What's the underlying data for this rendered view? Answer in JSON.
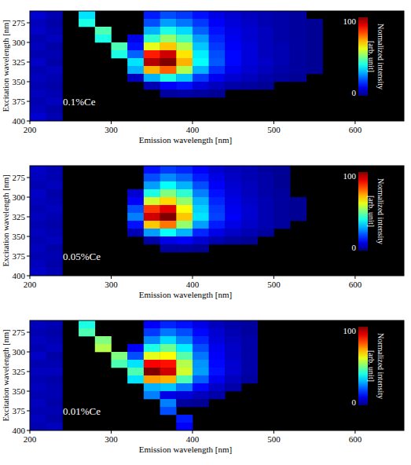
{
  "chart_data": [
    {
      "type": "heatmap",
      "annotation": "0.1%Ce",
      "x_label": "Emission wavelength [nm]",
      "y_label": "Excitation wavelength [nm]",
      "xlim": [
        200,
        660
      ],
      "xticks": [
        200,
        300,
        400,
        500,
        600
      ],
      "ylim": [
        260,
        400
      ],
      "yticks": [
        275,
        300,
        325,
        350,
        375,
        400
      ],
      "x": [
        210,
        230,
        250,
        270,
        290,
        310,
        330,
        350,
        370,
        390,
        410,
        430,
        450,
        470,
        490,
        510,
        530,
        550,
        570,
        590,
        610,
        630,
        650
      ],
      "y": [
        265,
        275,
        285,
        295,
        305,
        315,
        325,
        335,
        345,
        355,
        365,
        375,
        385,
        395
      ],
      "values": [
        [
          8,
          5,
          null,
          35,
          null,
          null,
          null,
          15,
          20,
          18,
          14,
          10,
          8,
          6,
          5,
          4,
          3,
          null,
          null,
          null,
          null,
          null,
          null
        ],
        [
          6,
          4,
          null,
          40,
          null,
          null,
          null,
          20,
          28,
          24,
          18,
          12,
          9,
          7,
          5,
          4,
          3,
          2,
          null,
          null,
          null,
          null,
          null
        ],
        [
          7,
          5,
          null,
          null,
          45,
          null,
          null,
          30,
          40,
          34,
          22,
          14,
          10,
          8,
          6,
          4,
          3,
          2,
          null,
          null,
          null,
          null,
          null
        ],
        [
          5,
          6,
          null,
          null,
          40,
          null,
          10,
          42,
          52,
          44,
          28,
          16,
          11,
          8,
          6,
          4,
          3,
          2,
          null,
          null,
          null,
          null,
          null
        ],
        [
          6,
          4,
          null,
          null,
          null,
          45,
          14,
          60,
          68,
          55,
          32,
          18,
          12,
          9,
          6,
          5,
          3,
          2,
          null,
          null,
          null,
          null,
          null
        ],
        [
          5,
          5,
          null,
          null,
          null,
          40,
          22,
          85,
          92,
          65,
          36,
          20,
          13,
          9,
          6,
          5,
          3,
          2,
          null,
          null,
          null,
          null,
          null
        ],
        [
          7,
          4,
          null,
          null,
          null,
          null,
          35,
          95,
          100,
          70,
          38,
          21,
          13,
          9,
          7,
          5,
          3,
          2,
          null,
          null,
          null,
          null,
          null
        ],
        [
          5,
          6,
          null,
          null,
          null,
          null,
          30,
          70,
          78,
          55,
          30,
          17,
          11,
          8,
          6,
          4,
          3,
          2,
          null,
          null,
          null,
          null,
          null
        ],
        [
          6,
          5,
          null,
          null,
          null,
          null,
          6,
          30,
          40,
          32,
          18,
          11,
          8,
          6,
          4,
          3,
          2,
          null,
          null,
          null,
          null,
          null,
          null
        ],
        [
          5,
          4,
          null,
          null,
          null,
          null,
          null,
          5,
          12,
          14,
          9,
          6,
          4,
          3,
          2,
          null,
          null,
          null,
          null,
          null,
          null,
          null,
          null
        ],
        [
          6,
          5,
          null,
          null,
          null,
          null,
          null,
          null,
          3,
          4,
          3,
          2,
          null,
          null,
          null,
          null,
          null,
          null,
          null,
          null,
          null,
          null,
          null
        ],
        [
          5,
          6,
          null,
          null,
          null,
          null,
          null,
          null,
          null,
          null,
          null,
          null,
          null,
          null,
          null,
          null,
          null,
          null,
          null,
          null,
          null,
          null,
          null
        ],
        [
          6,
          4,
          null,
          null,
          null,
          null,
          null,
          null,
          null,
          null,
          null,
          null,
          null,
          null,
          null,
          null,
          null,
          null,
          null,
          null,
          null,
          null,
          null
        ],
        [
          8,
          5,
          null,
          null,
          null,
          null,
          null,
          null,
          null,
          null,
          null,
          null,
          null,
          null,
          null,
          null,
          null,
          null,
          null,
          null,
          null,
          null,
          null
        ]
      ],
      "colorbar_label": "Normalized intensity [arb. unit]",
      "colorbar_range": [
        0,
        100
      ],
      "colorbar_ticks": [
        0,
        100
      ]
    },
    {
      "type": "heatmap",
      "annotation": "0.05%Ce",
      "x_label": "Emission wavelength [nm]",
      "y_label": "Excitation wavelength [nm]",
      "xlim": [
        200,
        660
      ],
      "xticks": [
        200,
        300,
        400,
        500,
        600
      ],
      "ylim": [
        260,
        400
      ],
      "yticks": [
        275,
        300,
        325,
        350,
        375,
        400
      ],
      "x": [
        210,
        230,
        250,
        270,
        290,
        310,
        330,
        350,
        370,
        390,
        410,
        430,
        450,
        470,
        490,
        510,
        530,
        550,
        570,
        590,
        610,
        630,
        650
      ],
      "y": [
        265,
        275,
        285,
        295,
        305,
        315,
        325,
        335,
        345,
        355,
        365,
        375,
        385,
        395
      ],
      "values": [
        [
          7,
          5,
          null,
          null,
          null,
          null,
          null,
          14,
          18,
          16,
          12,
          8,
          6,
          5,
          3,
          2,
          null,
          null,
          null,
          null,
          null,
          null,
          null
        ],
        [
          6,
          5,
          null,
          null,
          null,
          null,
          null,
          20,
          26,
          22,
          15,
          10,
          7,
          5,
          4,
          2,
          null,
          null,
          null,
          null,
          null,
          null,
          null
        ],
        [
          5,
          6,
          null,
          null,
          null,
          null,
          null,
          28,
          38,
          30,
          20,
          12,
          8,
          6,
          4,
          2,
          null,
          null,
          null,
          null,
          null,
          null,
          null
        ],
        [
          7,
          4,
          null,
          null,
          null,
          null,
          8,
          40,
          50,
          42,
          25,
          14,
          9,
          6,
          4,
          3,
          null,
          null,
          null,
          null,
          null,
          null,
          null
        ],
        [
          6,
          5,
          null,
          null,
          null,
          null,
          12,
          58,
          66,
          52,
          30,
          16,
          10,
          7,
          5,
          3,
          2,
          null,
          null,
          null,
          null,
          null,
          null
        ],
        [
          5,
          6,
          null,
          null,
          null,
          null,
          20,
          82,
          90,
          62,
          33,
          18,
          11,
          8,
          5,
          3,
          2,
          null,
          null,
          null,
          null,
          null,
          null
        ],
        [
          6,
          5,
          null,
          null,
          null,
          null,
          25,
          92,
          100,
          68,
          35,
          19,
          12,
          8,
          5,
          3,
          2,
          null,
          null,
          null,
          null,
          null,
          null
        ],
        [
          5,
          4,
          null,
          null,
          null,
          null,
          14,
          68,
          76,
          52,
          28,
          15,
          10,
          7,
          5,
          3,
          null,
          null,
          null,
          null,
          null,
          null,
          null
        ],
        [
          6,
          5,
          null,
          null,
          null,
          null,
          5,
          28,
          38,
          30,
          16,
          10,
          7,
          5,
          3,
          null,
          null,
          null,
          null,
          null,
          null,
          null,
          null
        ],
        [
          5,
          6,
          null,
          null,
          null,
          null,
          null,
          4,
          10,
          12,
          8,
          5,
          3,
          2,
          null,
          null,
          null,
          null,
          null,
          null,
          null,
          null,
          null
        ],
        [
          6,
          4,
          null,
          null,
          null,
          null,
          null,
          null,
          3,
          3,
          2,
          null,
          null,
          null,
          null,
          null,
          null,
          null,
          null,
          null,
          null,
          null,
          null
        ],
        [
          5,
          5,
          null,
          null,
          null,
          null,
          null,
          null,
          null,
          null,
          null,
          null,
          null,
          null,
          null,
          null,
          null,
          null,
          null,
          null,
          null,
          null,
          null
        ],
        [
          6,
          4,
          null,
          null,
          null,
          null,
          null,
          null,
          null,
          null,
          null,
          null,
          null,
          null,
          null,
          null,
          null,
          null,
          null,
          null,
          null,
          null,
          null
        ],
        [
          7,
          5,
          null,
          null,
          null,
          null,
          null,
          null,
          null,
          null,
          null,
          null,
          null,
          null,
          null,
          null,
          null,
          null,
          null,
          null,
          null,
          null,
          null
        ]
      ],
      "colorbar_label": "Normalized intensity [arb. unit]",
      "colorbar_range": [
        0,
        100
      ],
      "colorbar_ticks": [
        0,
        100
      ]
    },
    {
      "type": "heatmap",
      "annotation": "0.01%Ce",
      "x_label": "Emission wavelength [nm]",
      "y_label": "Excitation wavelength [nm]",
      "xlim": [
        200,
        660
      ],
      "xticks": [
        200,
        300,
        400,
        500,
        600
      ],
      "ylim": [
        260,
        400
      ],
      "yticks": [
        275,
        300,
        325,
        350,
        375,
        400
      ],
      "x": [
        210,
        230,
        250,
        270,
        290,
        310,
        330,
        350,
        370,
        390,
        410,
        430,
        450,
        470,
        490,
        510,
        530,
        550,
        570,
        590,
        610,
        630,
        650
      ],
      "y": [
        265,
        275,
        285,
        295,
        305,
        315,
        325,
        335,
        345,
        355,
        365,
        375,
        385,
        395
      ],
      "values": [
        [
          6,
          5,
          null,
          40,
          null,
          null,
          null,
          12,
          16,
          14,
          10,
          6,
          4,
          3,
          null,
          null,
          null,
          null,
          null,
          null,
          null,
          null,
          null
        ],
        [
          5,
          4,
          null,
          45,
          null,
          null,
          null,
          18,
          24,
          20,
          13,
          8,
          5,
          3,
          null,
          null,
          null,
          null,
          null,
          null,
          null,
          null,
          null
        ],
        [
          6,
          5,
          null,
          null,
          50,
          null,
          null,
          26,
          34,
          26,
          16,
          9,
          6,
          4,
          null,
          null,
          null,
          null,
          null,
          null,
          null,
          null,
          null
        ],
        [
          5,
          6,
          null,
          null,
          55,
          null,
          12,
          40,
          48,
          36,
          20,
          11,
          7,
          4,
          null,
          null,
          null,
          null,
          null,
          null,
          null,
          null,
          null
        ],
        [
          7,
          4,
          null,
          null,
          null,
          50,
          20,
          60,
          62,
          46,
          24,
          12,
          7,
          4,
          null,
          null,
          null,
          null,
          null,
          null,
          null,
          null,
          null
        ],
        [
          5,
          5,
          null,
          null,
          null,
          45,
          35,
          88,
          86,
          55,
          27,
          13,
          8,
          4,
          null,
          null,
          null,
          null,
          null,
          null,
          null,
          null,
          null
        ],
        [
          6,
          6,
          null,
          null,
          null,
          null,
          45,
          100,
          92,
          58,
          28,
          14,
          8,
          4,
          null,
          null,
          null,
          null,
          null,
          null,
          null,
          null,
          null
        ],
        [
          5,
          4,
          null,
          null,
          null,
          null,
          35,
          72,
          70,
          45,
          22,
          11,
          6,
          3,
          null,
          null,
          null,
          null,
          null,
          null,
          null,
          null,
          null
        ],
        [
          6,
          5,
          null,
          null,
          null,
          null,
          null,
          30,
          32,
          24,
          13,
          7,
          4,
          null,
          null,
          null,
          null,
          null,
          null,
          null,
          null,
          null,
          null
        ],
        [
          5,
          5,
          null,
          null,
          null,
          null,
          null,
          25,
          10,
          9,
          6,
          4,
          null,
          null,
          null,
          null,
          null,
          null,
          null,
          null,
          null,
          null,
          null
        ],
        [
          6,
          4,
          null,
          null,
          null,
          null,
          null,
          null,
          25,
          3,
          2,
          null,
          null,
          null,
          null,
          null,
          null,
          null,
          null,
          null,
          null,
          null,
          null
        ],
        [
          5,
          5,
          null,
          null,
          null,
          null,
          null,
          null,
          20,
          null,
          null,
          null,
          null,
          null,
          null,
          null,
          null,
          null,
          null,
          null,
          null,
          null,
          null
        ],
        [
          6,
          4,
          null,
          null,
          null,
          null,
          null,
          null,
          null,
          15,
          null,
          null,
          null,
          null,
          null,
          null,
          null,
          null,
          null,
          null,
          null,
          null,
          null
        ],
        [
          5,
          6,
          null,
          null,
          null,
          null,
          null,
          null,
          null,
          12,
          null,
          null,
          null,
          null,
          null,
          null,
          null,
          null,
          null,
          null,
          null,
          null,
          null
        ]
      ],
      "colorbar_label": "Normalized intensity [arb. unit]",
      "colorbar_range": [
        0,
        100
      ],
      "colorbar_ticks": [
        0,
        100
      ]
    }
  ]
}
